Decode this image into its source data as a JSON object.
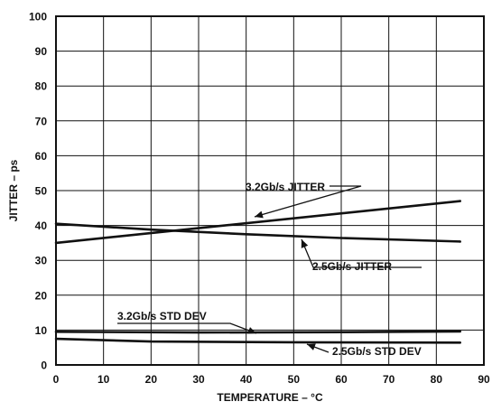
{
  "chart_data": {
    "type": "line",
    "title": "",
    "xlabel": "TEMPERATURE – °C",
    "ylabel": "JITTER – ps",
    "xlim": [
      0,
      90
    ],
    "ylim": [
      0,
      100
    ],
    "x_ticks": [
      "0",
      "10",
      "20",
      "30",
      "40",
      "50",
      "60",
      "70",
      "80",
      "90"
    ],
    "y_ticks": [
      "0",
      "10",
      "20",
      "30",
      "40",
      "50",
      "60",
      "70",
      "80",
      "90",
      "100"
    ],
    "grid": true,
    "series": [
      {
        "name": "3.2Gb/s JITTER",
        "x": [
          0,
          85
        ],
        "y": [
          35,
          47
        ]
      },
      {
        "name": "2.5Gb/s JITTER",
        "x": [
          0,
          20,
          40,
          60,
          85
        ],
        "y": [
          40.5,
          38.8,
          37.5,
          36.4,
          35.4
        ]
      },
      {
        "name": "3.2Gb/s STD DEV",
        "x": [
          0,
          30,
          60,
          85
        ],
        "y": [
          9.5,
          9.3,
          9.4,
          9.6
        ]
      },
      {
        "name": "2.5Gb/s STD DEV",
        "x": [
          0,
          20,
          50,
          85
        ],
        "y": [
          7.5,
          6.7,
          6.5,
          6.4
        ]
      }
    ]
  }
}
